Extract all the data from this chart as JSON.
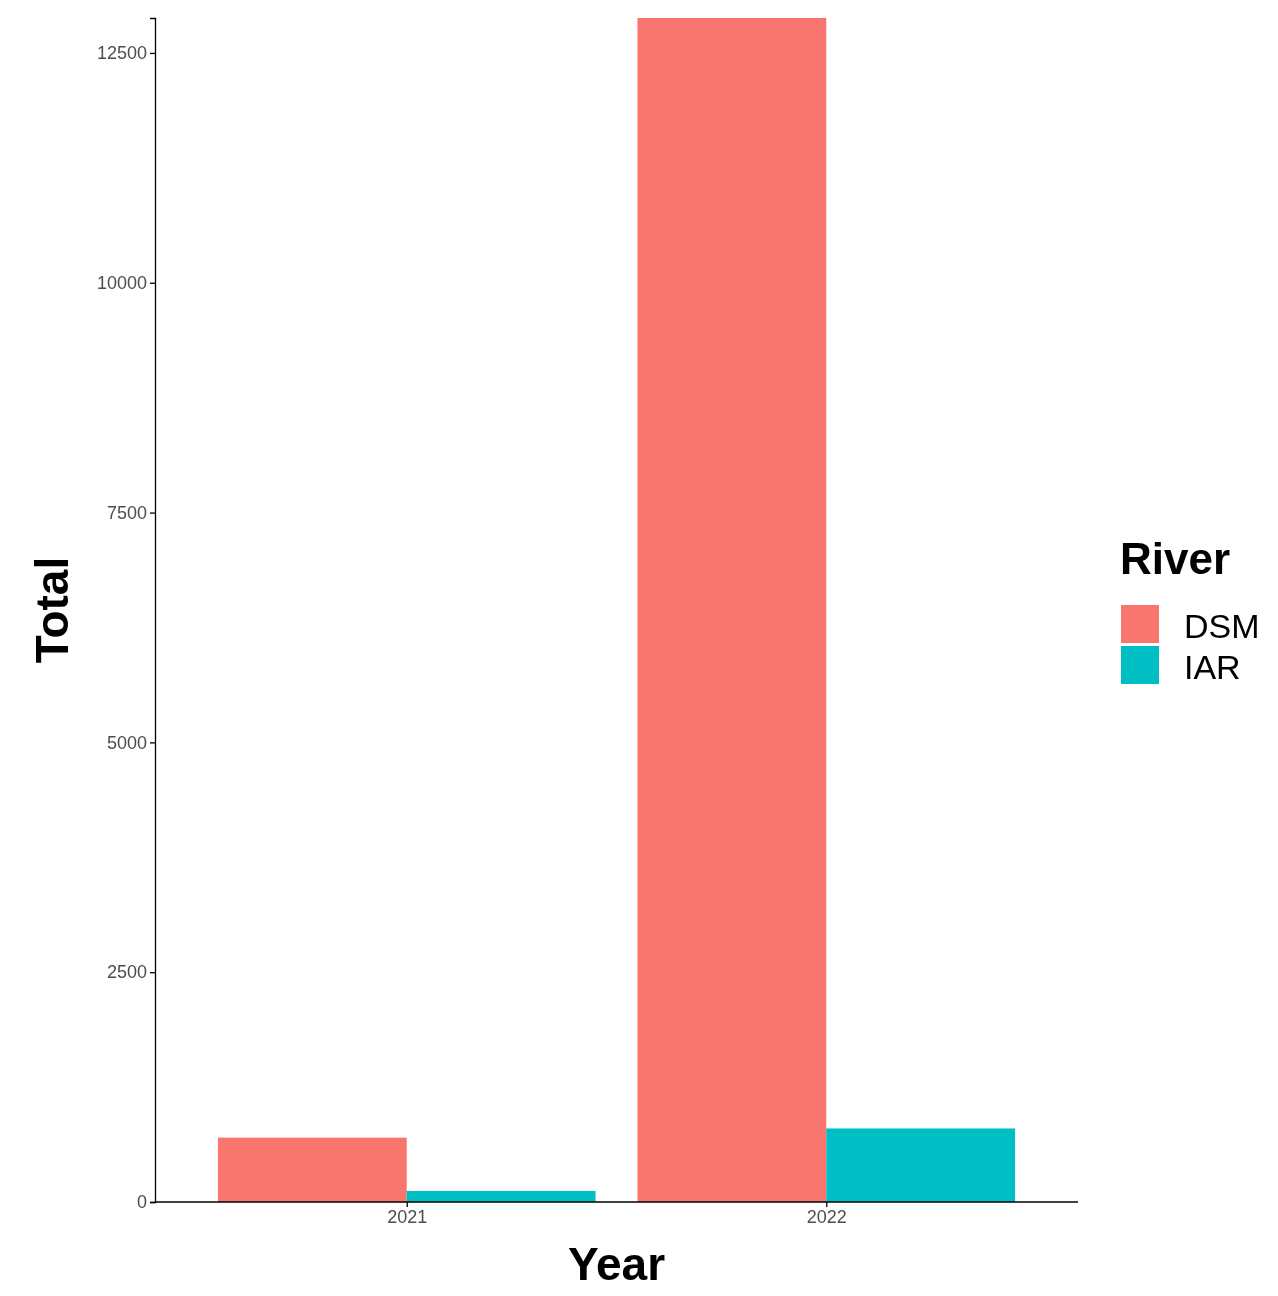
{
  "chart_data": {
    "type": "bar",
    "xlabel": "Year",
    "ylabel": "Total",
    "legend_title": "River",
    "legend": "right",
    "grid": false,
    "categories": [
      "2021",
      "2022"
    ],
    "series": [
      {
        "name": "DSM",
        "color": "#f8766d",
        "values": [
          700,
          12880
        ]
      },
      {
        "name": "IAR",
        "color": "#00bfc4",
        "values": [
          120,
          800
        ]
      }
    ],
    "ylim": [
      0,
      12880
    ],
    "yticks": [
      0,
      2500,
      5000,
      7500,
      10000,
      12500
    ]
  }
}
